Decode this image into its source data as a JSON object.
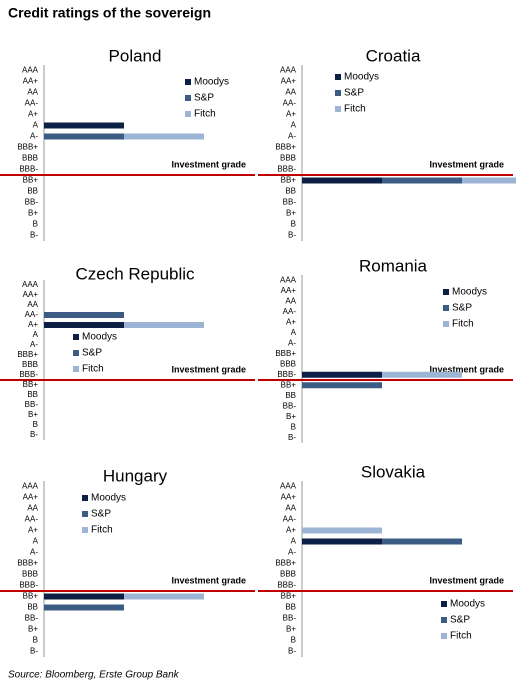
{
  "title": "Credit ratings of the sovereign",
  "source": "Source: Bloomberg, Erste Group Bank",
  "chart_data": [
    {
      "type": "bar",
      "title": "Poland",
      "annotation": "Investment grade",
      "legend": "upper right",
      "categories": [
        "AAA",
        "AA+",
        "AA",
        "AA-",
        "A+",
        "A",
        "A-",
        "BBB+",
        "BBB",
        "BBB-",
        "BB+",
        "BB",
        "BB-",
        "B+",
        "B",
        "B-"
      ],
      "series": [
        {
          "name": "Moodys",
          "color": "#0d1f45",
          "values": [
            null,
            null,
            null,
            null,
            null,
            1,
            null,
            null,
            null,
            null,
            null,
            null,
            null,
            null,
            null,
            null
          ]
        },
        {
          "name": "S&P",
          "color": "#3d5c84",
          "values": [
            null,
            null,
            null,
            null,
            null,
            null,
            1,
            null,
            null,
            null,
            null,
            null,
            null,
            null,
            null,
            null
          ]
        },
        {
          "name": "Fitch",
          "color": "#9db5d5",
          "values": [
            null,
            null,
            null,
            null,
            null,
            null,
            1,
            null,
            null,
            null,
            null,
            null,
            null,
            null,
            null,
            null
          ]
        }
      ]
    },
    {
      "type": "bar",
      "title": "Croatia",
      "annotation": "Investment grade",
      "legend": "upper center",
      "categories": [
        "AAA",
        "AA+",
        "AA",
        "AA-",
        "A+",
        "A",
        "A-",
        "BBB+",
        "BBB",
        "BBB-",
        "BB+",
        "BB",
        "BB-",
        "B+",
        "B",
        "B-"
      ],
      "series": [
        {
          "name": "Moodys",
          "color": "#0d1f45",
          "values": [
            null,
            null,
            null,
            null,
            null,
            null,
            null,
            null,
            null,
            null,
            1,
            null,
            null,
            null,
            null,
            null
          ]
        },
        {
          "name": "S&P",
          "color": "#3d5c84",
          "values": [
            null,
            null,
            null,
            null,
            null,
            null,
            null,
            null,
            null,
            null,
            1,
            null,
            null,
            null,
            null,
            null
          ]
        },
        {
          "name": "Fitch",
          "color": "#9db5d5",
          "values": [
            null,
            null,
            null,
            null,
            null,
            null,
            null,
            null,
            null,
            null,
            1,
            null,
            null,
            null,
            null,
            null
          ]
        }
      ]
    },
    {
      "type": "bar",
      "title": "Czech Republic",
      "annotation": "Investment grade",
      "legend": "center left",
      "categories": [
        "AAA",
        "AA+",
        "AA",
        "AA-",
        "A+",
        "A",
        "A-",
        "BBB+",
        "BBB",
        "BBB-",
        "BB+",
        "BB",
        "BB-",
        "B+",
        "B",
        "B-"
      ],
      "series": [
        {
          "name": "Moodys",
          "color": "#0d1f45",
          "values": [
            null,
            null,
            null,
            null,
            1,
            null,
            null,
            null,
            null,
            null,
            null,
            null,
            null,
            null,
            null,
            null
          ]
        },
        {
          "name": "S&P",
          "color": "#3d5c84",
          "values": [
            null,
            null,
            null,
            1,
            null,
            null,
            null,
            null,
            null,
            null,
            null,
            null,
            null,
            null,
            null,
            null
          ]
        },
        {
          "name": "Fitch",
          "color": "#9db5d5",
          "values": [
            null,
            null,
            null,
            null,
            1,
            null,
            null,
            null,
            null,
            null,
            null,
            null,
            null,
            null,
            null,
            null
          ]
        }
      ]
    },
    {
      "type": "bar",
      "title": "Romania",
      "annotation": "Investment grade",
      "legend": "upper right",
      "categories": [
        "AAA",
        "AA+",
        "AA",
        "AA-",
        "A+",
        "A",
        "A-",
        "BBB+",
        "BBB",
        "BBB-",
        "BB+",
        "BB",
        "BB-",
        "B+",
        "B",
        "B-"
      ],
      "series": [
        {
          "name": "Moodys",
          "color": "#0d1f45",
          "values": [
            null,
            null,
            null,
            null,
            null,
            null,
            null,
            null,
            null,
            1,
            null,
            null,
            null,
            null,
            null,
            null
          ]
        },
        {
          "name": "S&P",
          "color": "#3d5c84",
          "values": [
            null,
            null,
            null,
            null,
            null,
            null,
            null,
            null,
            null,
            null,
            1,
            null,
            null,
            null,
            null,
            null
          ]
        },
        {
          "name": "Fitch",
          "color": "#9db5d5",
          "values": [
            null,
            null,
            null,
            null,
            null,
            null,
            null,
            null,
            null,
            1,
            null,
            null,
            null,
            null,
            null,
            null
          ]
        }
      ]
    },
    {
      "type": "bar",
      "title": "Hungary",
      "annotation": "Investment grade",
      "legend": "upper left",
      "categories": [
        "AAA",
        "AA+",
        "AA",
        "AA-",
        "A+",
        "A",
        "A-",
        "BBB+",
        "BBB",
        "BBB-",
        "BB+",
        "BB",
        "BB-",
        "B+",
        "B",
        "B-"
      ],
      "series": [
        {
          "name": "Moodys",
          "color": "#0d1f45",
          "values": [
            null,
            null,
            null,
            null,
            null,
            null,
            null,
            null,
            null,
            null,
            1,
            null,
            null,
            null,
            null,
            null
          ]
        },
        {
          "name": "S&P",
          "color": "#3d5c84",
          "values": [
            null,
            null,
            null,
            null,
            null,
            null,
            null,
            null,
            null,
            null,
            null,
            1,
            null,
            null,
            null,
            null
          ]
        },
        {
          "name": "Fitch",
          "color": "#9db5d5",
          "values": [
            null,
            null,
            null,
            null,
            null,
            null,
            null,
            null,
            null,
            null,
            1,
            null,
            null,
            null,
            null,
            null
          ]
        }
      ]
    },
    {
      "type": "bar",
      "title": "Slovakia",
      "annotation": "Investment grade",
      "legend": "lower right",
      "categories": [
        "AAA",
        "AA+",
        "AA",
        "AA-",
        "A+",
        "A",
        "A-",
        "BBB+",
        "BBB",
        "BBB-",
        "BB+",
        "BB",
        "BB-",
        "B+",
        "B",
        "B-"
      ],
      "series": [
        {
          "name": "Moodys",
          "color": "#0d1f45",
          "values": [
            null,
            null,
            null,
            null,
            null,
            1,
            null,
            null,
            null,
            null,
            null,
            null,
            null,
            null,
            null,
            null
          ]
        },
        {
          "name": "S&P",
          "color": "#3d5c84",
          "values": [
            null,
            null,
            null,
            null,
            null,
            1,
            null,
            null,
            null,
            null,
            null,
            null,
            null,
            null,
            null,
            null
          ]
        },
        {
          "name": "Fitch",
          "color": "#9db5d5",
          "values": [
            null,
            null,
            null,
            null,
            1,
            null,
            null,
            null,
            null,
            null,
            null,
            null,
            null,
            null,
            null,
            null
          ]
        }
      ]
    }
  ]
}
